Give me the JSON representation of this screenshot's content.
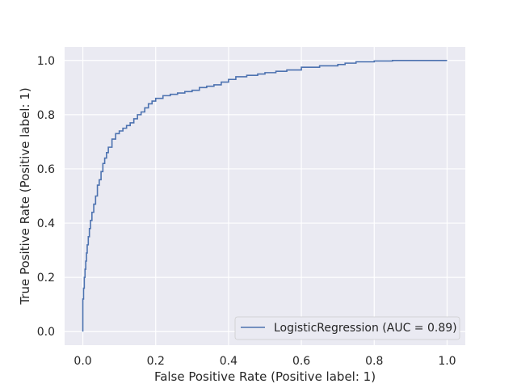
{
  "chart_data": {
    "type": "line",
    "title": "",
    "xlabel": "False Positive Rate (Positive label: 1)",
    "ylabel": "True Positive Rate (Positive label: 1)",
    "xlim": [
      -0.05,
      1.05
    ],
    "ylim": [
      -0.05,
      1.05
    ],
    "xticks": [
      0.0,
      0.2,
      0.4,
      0.6,
      0.8,
      1.0
    ],
    "yticks": [
      0.0,
      0.2,
      0.4,
      0.6,
      0.8,
      1.0
    ],
    "xtick_labels": [
      "0.0",
      "0.2",
      "0.4",
      "0.6",
      "0.8",
      "1.0"
    ],
    "ytick_labels": [
      "0.0",
      "0.2",
      "0.4",
      "0.6",
      "0.8",
      "1.0"
    ],
    "grid": true,
    "legend_position": "lower-right",
    "colors": {
      "background": "#eaeaf2",
      "grid": "#ffffff",
      "series": "#4c72b0"
    },
    "series": [
      {
        "name": "LogisticRegression (AUC = 0.89)",
        "x": [
          0.0,
          0.0,
          0.002,
          0.004,
          0.006,
          0.008,
          0.01,
          0.012,
          0.015,
          0.018,
          0.021,
          0.025,
          0.03,
          0.035,
          0.04,
          0.045,
          0.05,
          0.055,
          0.06,
          0.065,
          0.07,
          0.08,
          0.09,
          0.1,
          0.11,
          0.12,
          0.13,
          0.14,
          0.15,
          0.16,
          0.17,
          0.18,
          0.19,
          0.2,
          0.22,
          0.24,
          0.26,
          0.28,
          0.3,
          0.32,
          0.34,
          0.36,
          0.38,
          0.4,
          0.42,
          0.45,
          0.48,
          0.5,
          0.53,
          0.56,
          0.6,
          0.65,
          0.7,
          0.72,
          0.75,
          0.8,
          0.85,
          0.9,
          1.0
        ],
        "y": [
          0.0,
          0.12,
          0.16,
          0.2,
          0.23,
          0.26,
          0.29,
          0.32,
          0.35,
          0.38,
          0.41,
          0.44,
          0.47,
          0.5,
          0.54,
          0.56,
          0.59,
          0.62,
          0.64,
          0.66,
          0.68,
          0.71,
          0.73,
          0.74,
          0.75,
          0.76,
          0.77,
          0.785,
          0.8,
          0.81,
          0.825,
          0.84,
          0.85,
          0.86,
          0.87,
          0.875,
          0.88,
          0.885,
          0.89,
          0.9,
          0.905,
          0.91,
          0.92,
          0.93,
          0.94,
          0.945,
          0.95,
          0.955,
          0.96,
          0.965,
          0.975,
          0.98,
          0.985,
          0.99,
          0.995,
          0.998,
          1.0,
          1.0,
          1.0
        ]
      }
    ]
  }
}
